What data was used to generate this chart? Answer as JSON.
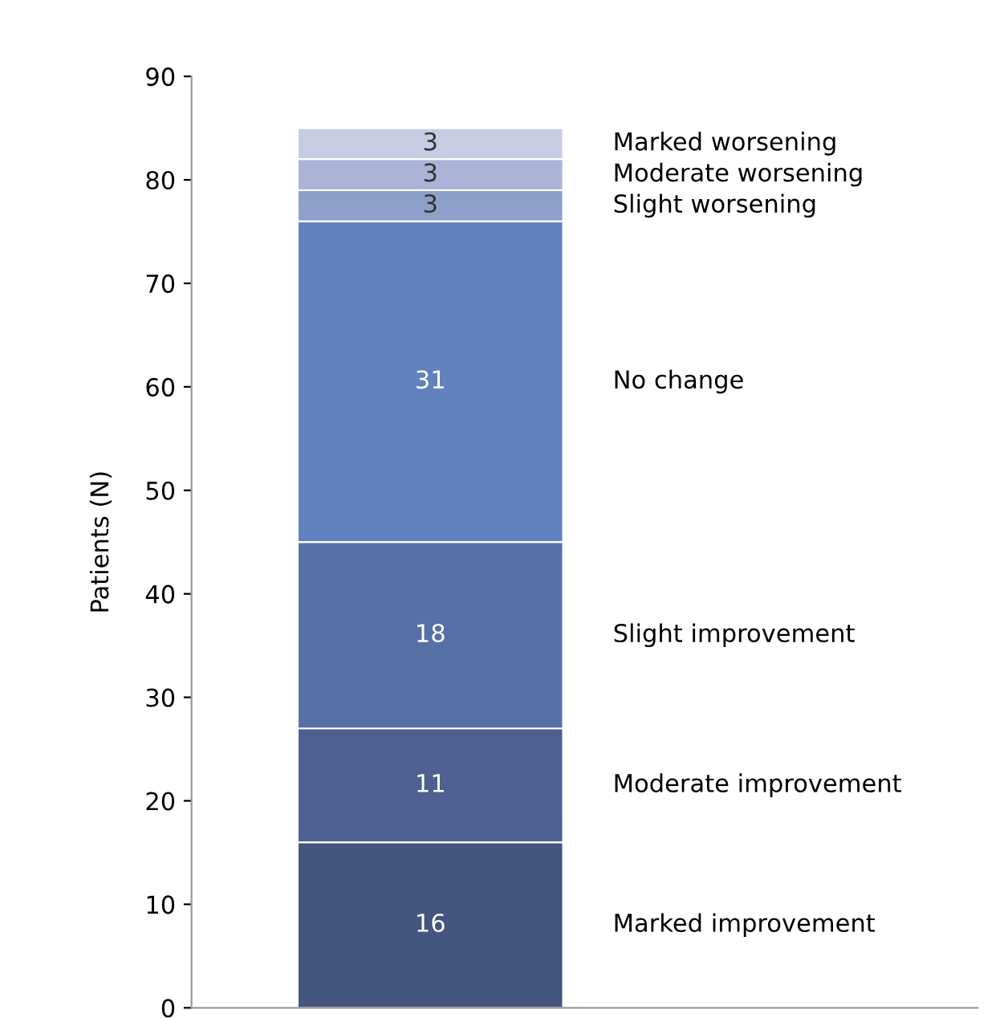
{
  "chart_data": {
    "type": "bar",
    "stacked": true,
    "ylabel": "Patients (N)",
    "categories": [
      null
    ],
    "series": [
      {
        "name": "Marked improvement",
        "color": "#44557f",
        "values": [
          16
        ]
      },
      {
        "name": "Moderate improvement",
        "color": "#4d6091",
        "values": [
          11
        ]
      },
      {
        "name": "Slight improvement",
        "color": "#5770a6",
        "values": [
          18
        ]
      },
      {
        "name": "No change",
        "color": "#6181bf",
        "values": [
          31
        ]
      },
      {
        "name": "Slight worsening",
        "color": "#8e9fca",
        "values": [
          3
        ]
      },
      {
        "name": "Moderate worsening",
        "color": "#a9b4d6",
        "values": [
          3
        ]
      },
      {
        "name": "Marked worsening",
        "color": "#c6cde3",
        "values": [
          3
        ]
      }
    ],
    "ylim": [
      0,
      90
    ],
    "yticks": [
      0,
      10,
      20,
      30,
      40,
      50,
      60,
      70,
      80,
      90
    ],
    "data_labels": true,
    "grid": false,
    "legend": false,
    "tick_labels": "y"
  }
}
